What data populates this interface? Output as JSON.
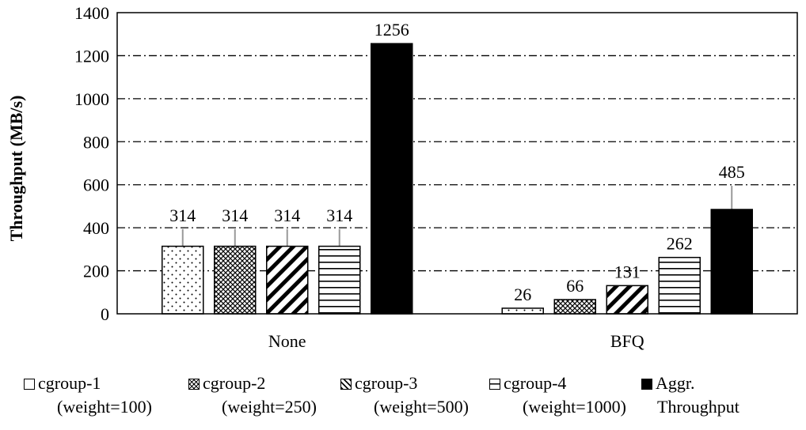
{
  "chart_data": {
    "type": "bar",
    "categories": [
      "None",
      "BFQ"
    ],
    "series": [
      {
        "name": "cgroup-1 (weight=100)",
        "values": [
          314,
          26
        ],
        "labels": [
          "314",
          "26"
        ],
        "pattern": "dots"
      },
      {
        "name": "cgroup-2 (weight=250)",
        "values": [
          314,
          66
        ],
        "labels": [
          "314",
          "66"
        ],
        "pattern": "cross"
      },
      {
        "name": "cgroup-3 (weight=500)",
        "values": [
          314,
          131
        ],
        "labels": [
          "314",
          "131"
        ],
        "pattern": "diag"
      },
      {
        "name": "cgroup-4 (weight=1000)",
        "values": [
          314,
          262
        ],
        "labels": [
          "314",
          "262"
        ],
        "pattern": "hlines"
      },
      {
        "name": "Aggr. Throughput",
        "values": [
          1256,
          485
        ],
        "labels": [
          "1256",
          "485"
        ],
        "pattern": "solid"
      }
    ],
    "error_bars": [
      [
        80,
        0
      ],
      [
        80,
        0
      ],
      [
        80,
        0
      ],
      [
        80,
        0
      ],
      [
        0,
        110
      ]
    ],
    "ylabel": "Throughput (MB/s)",
    "xlabel": "",
    "ylim": [
      0,
      1400
    ],
    "yticks": [
      "0",
      "200",
      "400",
      "600",
      "800",
      "1000",
      "1200",
      "1400"
    ],
    "grid": "horizontal dash-dot",
    "legend": "bottom",
    "colors": {
      "bar_stroke": "#000000",
      "fill": "#ffffff",
      "aggr": "#000000",
      "error_bar": "#999999"
    }
  },
  "legend_items": [
    {
      "line1": "cgroup-1",
      "line2": "(weight=100)"
    },
    {
      "line1": "cgroup-2",
      "line2": "(weight=250)"
    },
    {
      "line1": "cgroup-3",
      "line2": "(weight=500)"
    },
    {
      "line1": "cgroup-4",
      "line2": "(weight=1000)"
    },
    {
      "line1": "Aggr.",
      "line2": "Throughput"
    }
  ]
}
